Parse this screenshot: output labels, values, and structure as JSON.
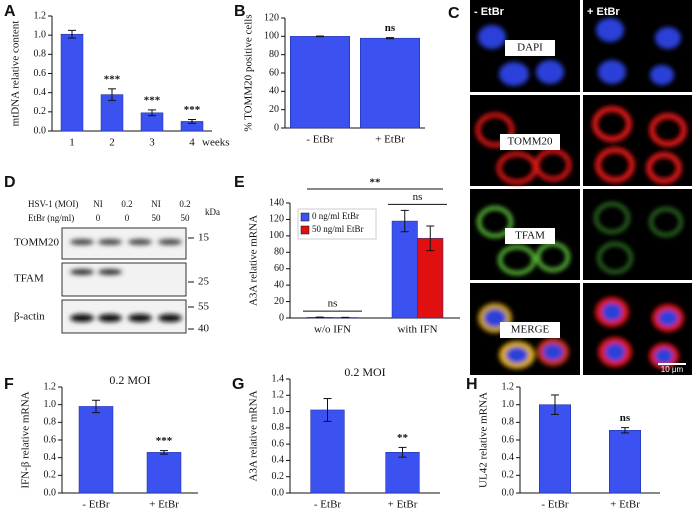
{
  "chart_data": [
    {
      "type": "bar",
      "panel": "A",
      "ylabel": "mtDNA relative content",
      "xlabel": "weeks",
      "categories": [
        "1",
        "2",
        "3",
        "4"
      ],
      "values": [
        1.01,
        0.38,
        0.19,
        0.1
      ],
      "errors": [
        0.04,
        0.06,
        0.03,
        0.02
      ],
      "color": "#3b52f0",
      "ylim": [
        0,
        1.2
      ],
      "yticks": [
        {
          "value": 0,
          "label": "0.0"
        },
        0.2,
        0.4,
        0.6,
        0.8,
        {
          "value": 1,
          "label": "1.0"
        },
        1.2
      ],
      "annotations": [
        {
          "text": "***",
          "at": "2"
        },
        {
          "text": "***",
          "at": "3"
        },
        {
          "text": "***",
          "at": "4"
        }
      ]
    },
    {
      "type": "bar",
      "panel": "B",
      "ylabel": "% TOMM20 positive cells",
      "categories": [
        "- EtBr",
        "+ EtBr"
      ],
      "values": [
        100,
        98
      ],
      "errors": [
        0.3,
        0.6
      ],
      "color": "#3b52f0",
      "ylim": [
        0,
        120
      ],
      "yticks": [
        0,
        20,
        40,
        60,
        80,
        100,
        120
      ],
      "annotations": [
        {
          "text": "ns",
          "at": "+ EtBr"
        }
      ]
    },
    {
      "type": "bar",
      "panel": "E",
      "ylabel": "A3A relative mRNA",
      "categories": [
        "w/o IFN",
        "with IFN"
      ],
      "series": [
        {
          "name": "0 ng/ml EtBr",
          "color": "#3b52f0",
          "values": [
            0.8,
            118
          ],
          "errors": [
            0.3,
            13
          ]
        },
        {
          "name": "50 ng/ml EtBr",
          "color": "#e01010",
          "values": [
            0.6,
            97
          ],
          "errors": [
            0.2,
            15
          ]
        }
      ],
      "ylim": [
        0,
        140
      ],
      "yticks": [
        0,
        20,
        40,
        60,
        80,
        100,
        120,
        140
      ],
      "legend": "top-left",
      "annotations": [
        {
          "text": "ns",
          "at": "w/o IFN"
        },
        {
          "text": "ns",
          "at": "with IFN"
        },
        {
          "text": "**",
          "at": [
            "w/o IFN",
            "with IFN"
          ]
        }
      ]
    },
    {
      "type": "bar",
      "panel": "F",
      "title": "0.2 MOI",
      "ylabel": "IFN-β relative mRNA",
      "categories": [
        "- EtBr",
        "+ EtBr"
      ],
      "values": [
        0.98,
        0.46
      ],
      "errors": [
        0.07,
        0.02
      ],
      "color": "#3b52f0",
      "ylim": [
        0,
        1.2
      ],
      "yticks": [
        {
          "value": 0,
          "label": "0.0"
        },
        0.2,
        0.4,
        0.6,
        0.8,
        {
          "value": 1,
          "label": "1.0"
        },
        1.2
      ],
      "annotations": [
        {
          "text": "***",
          "at": "+ EtBr"
        }
      ]
    },
    {
      "type": "bar",
      "panel": "G",
      "title": "0.2 MOI",
      "ylabel": "A3A relative mRNA",
      "categories": [
        "- EtBr",
        "+ EtBr"
      ],
      "values": [
        1.02,
        0.5
      ],
      "errors": [
        0.14,
        0.06
      ],
      "color": "#3b52f0",
      "ylim": [
        0,
        1.4
      ],
      "yticks": [
        {
          "value": 0,
          "label": "0.0"
        },
        0.2,
        0.4,
        0.6,
        0.8,
        {
          "value": 1,
          "label": "1.0"
        },
        1.2,
        1.4
      ],
      "annotations": [
        {
          "text": "**",
          "at": "+ EtBr"
        }
      ]
    },
    {
      "type": "bar",
      "panel": "H",
      "ylabel": "UL42 relative mRNA",
      "categories": [
        "- EtBr",
        "+ EtBr"
      ],
      "values": [
        1.0,
        0.71
      ],
      "errors": [
        0.11,
        0.03
      ],
      "color": "#3b52f0",
      "ylim": [
        0,
        1.2
      ],
      "yticks": [
        {
          "value": 0,
          "label": "0.0"
        },
        0.2,
        0.4,
        0.6,
        0.8,
        {
          "value": 1,
          "label": "1.0"
        },
        1.2
      ],
      "annotations": [
        {
          "text": "ns",
          "at": "+ EtBr"
        }
      ]
    }
  ],
  "micrographs": {
    "panel": "C",
    "columns": [
      "- EtBr",
      "+ EtBr"
    ],
    "rows": [
      "DAPI",
      "TOMM20",
      "TFAM",
      "MERGE"
    ],
    "scale_bar": "10 μm"
  },
  "blot": {
    "panel": "D",
    "header": [
      {
        "label": "HSV-1 (MOI)",
        "lanes": [
          "NI",
          "0.2",
          "NI",
          "0.2"
        ]
      },
      {
        "label": "EtBr (ng/ml)",
        "lanes": [
          "0",
          "0",
          "50",
          "50"
        ]
      }
    ],
    "unit": "kDa",
    "rows": [
      "TOMM20",
      "TFAM",
      "β-actin"
    ],
    "markers": [
      "15",
      "25",
      "55",
      "40"
    ]
  }
}
